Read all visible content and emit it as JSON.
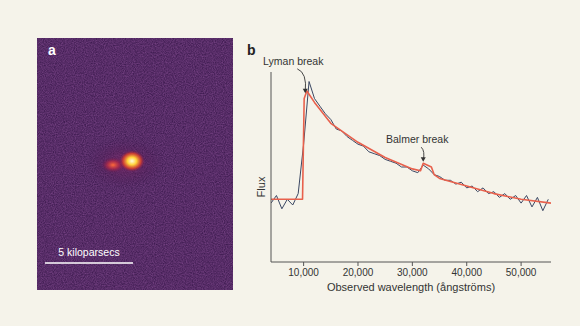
{
  "image_panel": {
    "panel_label": "a",
    "scale_bar_label": "5 kiloparsecs"
  },
  "chart_data": {
    "type": "line",
    "panel_label": "b",
    "x_label": "Observed wavelength (ångströms)",
    "y_label": "Flux",
    "xlim": [
      4000,
      55500
    ],
    "ylim": [
      0,
      1
    ],
    "xticks": [
      {
        "value": 10000,
        "label": "10,000"
      },
      {
        "value": 20000,
        "label": "20,000"
      },
      {
        "value": 30000,
        "label": "30,000"
      },
      {
        "value": 40000,
        "label": "40,000"
      },
      {
        "value": 50000,
        "label": "50,000"
      }
    ],
    "tick_labels": "x",
    "grid": false,
    "series": [
      {
        "color": "#3b4763",
        "line_style": "solid",
        "x": [
          4000,
          5000,
          6000,
          7000,
          8000,
          9000,
          10000,
          11000,
          12000,
          13000,
          14000,
          15000,
          16000,
          17000,
          18000,
          19000,
          20000,
          21000,
          22000,
          23000,
          24000,
          25000,
          26000,
          27000,
          28000,
          29000,
          30000,
          31000,
          32000,
          33000,
          34000,
          35000,
          36000,
          37000,
          38000,
          39000,
          40000,
          41000,
          42000,
          43000,
          44000,
          45000,
          46000,
          47000,
          48000,
          49000,
          50000,
          51000,
          52000,
          53000,
          54000,
          55000
        ],
        "values": [
          0.31,
          0.35,
          0.28,
          0.33,
          0.3,
          0.36,
          0.62,
          0.95,
          0.86,
          0.82,
          0.78,
          0.75,
          0.7,
          0.69,
          0.66,
          0.64,
          0.62,
          0.61,
          0.58,
          0.57,
          0.56,
          0.54,
          0.53,
          0.52,
          0.5,
          0.5,
          0.48,
          0.47,
          0.51,
          0.49,
          0.46,
          0.45,
          0.43,
          0.43,
          0.41,
          0.42,
          0.39,
          0.4,
          0.37,
          0.39,
          0.36,
          0.37,
          0.34,
          0.36,
          0.33,
          0.35,
          0.31,
          0.35,
          0.29,
          0.34,
          0.27,
          0.33
        ]
      },
      {
        "color": "#e8604c",
        "line_style": "solid",
        "x": [
          4000,
          9800,
          10100,
          10600,
          12000,
          15000,
          20000,
          25000,
          30000,
          31500,
          32000,
          33500,
          34000,
          35000,
          40000,
          45000,
          50000,
          55500
        ],
        "values": [
          0.33,
          0.33,
          0.86,
          0.9,
          0.84,
          0.73,
          0.63,
          0.55,
          0.49,
          0.48,
          0.52,
          0.5,
          0.46,
          0.44,
          0.4,
          0.36,
          0.33,
          0.31
        ]
      }
    ],
    "annotations": [
      {
        "text": "Lyman break",
        "x": 10300,
        "y": 0.88
      },
      {
        "text": "Balmer break",
        "x": 32000,
        "y": 0.52
      }
    ]
  }
}
